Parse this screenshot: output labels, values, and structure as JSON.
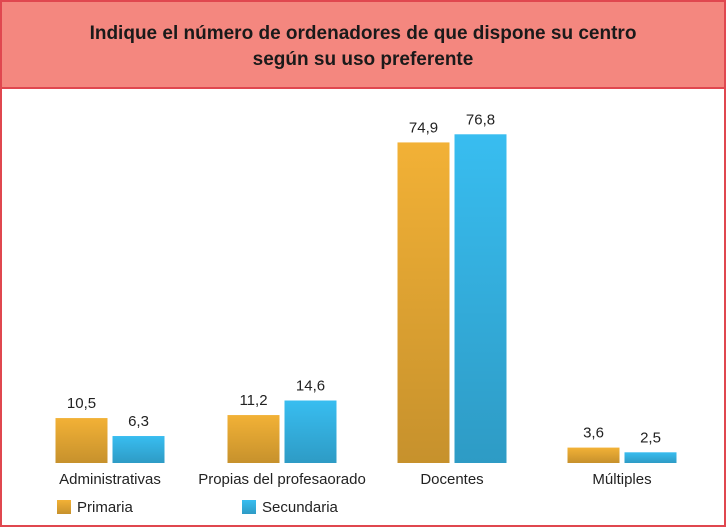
{
  "chart_data": {
    "type": "bar",
    "title": [
      "Indique el número de ordenadores de que dispone su centro",
      "según su uso  preferente"
    ],
    "categories": [
      "Administrativas",
      "Propias del profesaorado",
      "Docentes",
      "Múltiples"
    ],
    "series": [
      {
        "name": "Primaria",
        "color": "#f2b136",
        "values": [
          10.5,
          11.2,
          74.9,
          3.6
        ],
        "value_labels": [
          "10,5",
          "11,2",
          "74,9",
          "3,6"
        ]
      },
      {
        "name": "Secundaria",
        "color": "#38bdf0",
        "values": [
          6.3,
          14.6,
          76.8,
          2.5
        ],
        "value_labels": [
          "6,3",
          "14,6",
          "76,8",
          "2,5"
        ]
      }
    ]
  }
}
